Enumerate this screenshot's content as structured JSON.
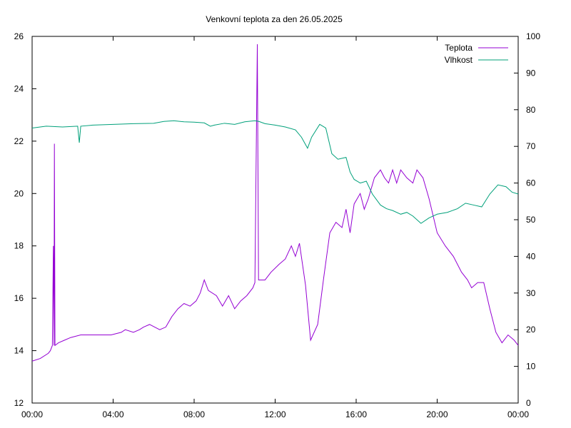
{
  "chart_data": {
    "type": "line",
    "title": "Venkovní teplota za den 26.05.2025",
    "x_ticks": [
      "00:00",
      "04:00",
      "08:00",
      "12:00",
      "16:00",
      "20:00",
      "00:00"
    ],
    "x_range_hours": [
      0,
      24
    ],
    "y_left_ticks": [
      "12",
      "14",
      "16",
      "18",
      "20",
      "22",
      "24",
      "26"
    ],
    "y_left_range": [
      12,
      26
    ],
    "y_right_ticks": [
      "0",
      "10",
      "20",
      "30",
      "40",
      "50",
      "60",
      "70",
      "80",
      "90",
      "100"
    ],
    "y_right_range": [
      0,
      100
    ],
    "grid": false,
    "legend_position": "top-right",
    "series": [
      {
        "name": "Teplota",
        "axis": "left",
        "color": "#9400D3",
        "points": [
          [
            0.0,
            13.6
          ],
          [
            0.4,
            13.7
          ],
          [
            0.8,
            13.9
          ],
          [
            0.9,
            14.0
          ],
          [
            1.0,
            14.2
          ],
          [
            1.05,
            18.0
          ],
          [
            1.08,
            14.2
          ],
          [
            1.1,
            21.9
          ],
          [
            1.13,
            14.2
          ],
          [
            1.3,
            14.3
          ],
          [
            1.6,
            14.4
          ],
          [
            1.9,
            14.5
          ],
          [
            2.4,
            14.6
          ],
          [
            3.0,
            14.6
          ],
          [
            3.9,
            14.6
          ],
          [
            4.4,
            14.7
          ],
          [
            4.6,
            14.8
          ],
          [
            5.0,
            14.7
          ],
          [
            5.3,
            14.8
          ],
          [
            5.5,
            14.9
          ],
          [
            5.8,
            15.0
          ],
          [
            6.3,
            14.8
          ],
          [
            6.6,
            14.9
          ],
          [
            6.9,
            15.3
          ],
          [
            7.2,
            15.6
          ],
          [
            7.5,
            15.8
          ],
          [
            7.8,
            15.7
          ],
          [
            8.1,
            15.9
          ],
          [
            8.3,
            16.2
          ],
          [
            8.5,
            16.7
          ],
          [
            8.7,
            16.3
          ],
          [
            9.1,
            16.1
          ],
          [
            9.4,
            15.7
          ],
          [
            9.7,
            16.1
          ],
          [
            10.0,
            15.6
          ],
          [
            10.3,
            15.9
          ],
          [
            10.6,
            16.1
          ],
          [
            10.9,
            16.4
          ],
          [
            11.0,
            16.6
          ],
          [
            11.12,
            25.7
          ],
          [
            11.18,
            16.7
          ],
          [
            11.5,
            16.7
          ],
          [
            11.8,
            17.0
          ],
          [
            12.2,
            17.3
          ],
          [
            12.5,
            17.5
          ],
          [
            12.8,
            18.0
          ],
          [
            13.0,
            17.6
          ],
          [
            13.2,
            18.1
          ],
          [
            13.5,
            16.5
          ],
          [
            13.75,
            14.4
          ],
          [
            14.1,
            15.0
          ],
          [
            14.4,
            16.8
          ],
          [
            14.7,
            18.5
          ],
          [
            15.0,
            18.9
          ],
          [
            15.3,
            18.7
          ],
          [
            15.5,
            19.4
          ],
          [
            15.7,
            18.5
          ],
          [
            15.9,
            19.6
          ],
          [
            16.2,
            20.0
          ],
          [
            16.4,
            19.4
          ],
          [
            16.6,
            19.8
          ],
          [
            16.9,
            20.6
          ],
          [
            17.2,
            20.9
          ],
          [
            17.4,
            20.6
          ],
          [
            17.6,
            20.4
          ],
          [
            17.8,
            20.9
          ],
          [
            18.0,
            20.4
          ],
          [
            18.2,
            20.9
          ],
          [
            18.5,
            20.6
          ],
          [
            18.8,
            20.4
          ],
          [
            19.0,
            20.9
          ],
          [
            19.3,
            20.6
          ],
          [
            19.6,
            19.8
          ],
          [
            20.0,
            18.5
          ],
          [
            20.4,
            18.0
          ],
          [
            20.8,
            17.6
          ],
          [
            21.2,
            17.0
          ],
          [
            21.5,
            16.7
          ],
          [
            21.7,
            16.4
          ],
          [
            22.0,
            16.6
          ],
          [
            22.3,
            16.6
          ],
          [
            22.6,
            15.6
          ],
          [
            22.9,
            14.7
          ],
          [
            23.2,
            14.3
          ],
          [
            23.5,
            14.6
          ],
          [
            23.8,
            14.4
          ],
          [
            24.0,
            14.2
          ]
        ]
      },
      {
        "name": "Vlhkost",
        "axis": "right",
        "color": "#00A07A",
        "points": [
          [
            0.0,
            75.0
          ],
          [
            0.7,
            75.5
          ],
          [
            1.5,
            75.3
          ],
          [
            2.25,
            75.5
          ],
          [
            2.33,
            71.0
          ],
          [
            2.4,
            75.5
          ],
          [
            3.0,
            75.8
          ],
          [
            4.0,
            76.0
          ],
          [
            5.0,
            76.2
          ],
          [
            6.0,
            76.3
          ],
          [
            6.5,
            76.8
          ],
          [
            7.0,
            77.0
          ],
          [
            7.5,
            76.7
          ],
          [
            8.0,
            76.6
          ],
          [
            8.5,
            76.4
          ],
          [
            8.8,
            75.5
          ],
          [
            9.0,
            75.8
          ],
          [
            9.5,
            76.3
          ],
          [
            10.0,
            76.0
          ],
          [
            10.5,
            76.7
          ],
          [
            11.0,
            77.0
          ],
          [
            11.2,
            76.8
          ],
          [
            11.5,
            76.2
          ],
          [
            12.0,
            75.8
          ],
          [
            12.5,
            75.3
          ],
          [
            13.0,
            74.5
          ],
          [
            13.3,
            72.5
          ],
          [
            13.6,
            69.5
          ],
          [
            13.8,
            72.5
          ],
          [
            14.2,
            76.0
          ],
          [
            14.5,
            75.0
          ],
          [
            14.8,
            68.0
          ],
          [
            15.1,
            66.5
          ],
          [
            15.5,
            67.0
          ],
          [
            15.7,
            63.0
          ],
          [
            15.9,
            61.0
          ],
          [
            16.2,
            60.0
          ],
          [
            16.5,
            60.5
          ],
          [
            16.8,
            57.0
          ],
          [
            17.2,
            54.0
          ],
          [
            17.5,
            53.0
          ],
          [
            17.8,
            52.5
          ],
          [
            18.2,
            51.5
          ],
          [
            18.5,
            52.0
          ],
          [
            18.8,
            51.0
          ],
          [
            19.2,
            49.0
          ],
          [
            19.6,
            50.5
          ],
          [
            20.0,
            51.5
          ],
          [
            20.5,
            52.0
          ],
          [
            21.0,
            53.0
          ],
          [
            21.4,
            54.5
          ],
          [
            21.8,
            54.0
          ],
          [
            22.2,
            53.5
          ],
          [
            22.6,
            57.0
          ],
          [
            23.0,
            59.5
          ],
          [
            23.4,
            59.0
          ],
          [
            23.7,
            57.5
          ],
          [
            24.0,
            57.0
          ]
        ]
      }
    ]
  }
}
